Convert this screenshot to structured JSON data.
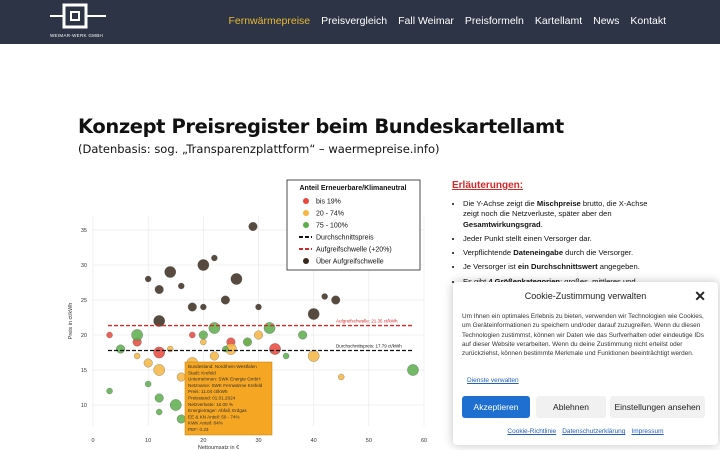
{
  "header": {
    "logo_text": "WEIMAR-WERK GMBH",
    "nav": [
      "Fernwärmepreise",
      "Preisvergleich",
      "Fall Weimar",
      "Preisformeln",
      "Kartellamt",
      "News",
      "Kontakt"
    ]
  },
  "content": {
    "title": "Konzept Preisregister beim Bundeskartellamt",
    "subtitle": "(Datenbasis: sog. „Transparenzplattform“ – waermepreise.info)",
    "explanation_title": "Erläuterungen:",
    "bullets": [
      [
        "Die Y-Achse zeigt die ",
        "Mischpreise",
        " brutto, die X-Achse zeigt noch die Netzverluste, später aber den ",
        "Gesamtwirkungsgrad",
        "."
      ],
      [
        "Jeder Punkt stellt einen Versorger dar."
      ],
      [
        "Verpflichtende ",
        "Dateneingabe",
        " durch die Versorger."
      ],
      [
        "Je Versorger ist ",
        "ein Durchschnittswert",
        " angegeben."
      ],
      [
        "Es gibt ",
        "4 Größenkategorien",
        ": großes, mittleres und"
      ]
    ]
  },
  "chart_data": {
    "type": "scatter",
    "ylabel": "Preis in ct/kWh",
    "xlabel": "Nettoumsatz in €",
    "legend_title": "Anteil Erneuerbare/Klimaneutral",
    "xlim": [
      0,
      60
    ],
    "ylim": [
      7,
      37
    ],
    "xticks": [
      0,
      10,
      20,
      30,
      40,
      50,
      60
    ],
    "yticks": [
      10,
      15,
      20,
      25,
      30,
      35
    ],
    "grid": true,
    "series": [
      {
        "name": "bis 19%",
        "color": "#e8473b",
        "x": [
          3,
          8,
          12,
          18,
          25,
          33
        ],
        "values": [
          20,
          19,
          17.5,
          20,
          19,
          18
        ]
      },
      {
        "name": "20 - 74%",
        "color": "#f4b63f",
        "x": [
          8,
          10,
          12,
          14,
          16,
          18,
          20,
          22,
          25,
          28,
          30,
          40,
          45
        ],
        "values": [
          17,
          16,
          15,
          18,
          14,
          16,
          19,
          17,
          18,
          19,
          20,
          17,
          14
        ]
      },
      {
        "name": "75 - 100%",
        "color": "#5cad4a",
        "x": [
          3,
          5,
          8,
          10,
          12,
          15,
          18,
          20,
          22,
          24,
          28,
          32,
          35,
          38,
          58,
          12,
          16
        ],
        "values": [
          12,
          18,
          20,
          13,
          11,
          10,
          12,
          20,
          21,
          18,
          19,
          21,
          17,
          20,
          15,
          9,
          8
        ]
      },
      {
        "name": "Über Aufgreifschwelle",
        "color": "#3a2a1c",
        "x": [
          10,
          12,
          14,
          16,
          18,
          20,
          22,
          24,
          26,
          30,
          29,
          40,
          42,
          44,
          12,
          20
        ],
        "values": [
          28,
          26.5,
          29,
          27,
          24,
          30,
          31,
          25,
          28,
          24,
          35.5,
          23,
          25.5,
          25,
          22,
          24
        ]
      }
    ],
    "hlines": [
      {
        "name": "Durchschnittspreis",
        "value": 17.79,
        "label": "Durchschnittspreis: 17.79 ct/kWh",
        "color": "#111111"
      },
      {
        "name": "Aufgreifschwelle (+20%)",
        "value": 21.35,
        "label": "Aufgreifschwelle: 21.35 ct/kWh",
        "color": "#d62728"
      }
    ],
    "tooltip": [
      "Bundesland: Nordrhein-Westfalen",
      "Stadt: Krefeld",
      "Unternehmen: SWK Energie GmbH",
      "Netzname: SWK Fernwärme Krefeld",
      "Preis: 11.04 ct/kWh",
      "Preisstand: 01.01.2024",
      "Netzverluste: 16.00 %",
      "Energieträger: Abfall, Erdgas",
      "EE & KN Anteil: 50 - 74%",
      "KWK Anteil: 84%",
      "PEF: 0.23"
    ]
  },
  "cookie": {
    "title": "Cookie-Zustimmung verwalten",
    "text": "Um Ihnen ein optimales Erlebnis zu bieten, verwenden wir Technologien wie Cookies, um Geräteinformationen zu speichern und/oder darauf zuzugreifen. Wenn du diesen Technologien zustimmst, können wir Daten wie das Surfverhalten oder eindeutige IDs auf dieser Website verarbeiten. Wenn du deine Zustimmung nicht erteilst oder zurückziehst, können bestimmte Merkmale und Funktionen beeinträchtigt werden.",
    "manage": "Dienste verwalten",
    "accept": "Akzeptieren",
    "decline": "Ablehnen",
    "settings": "Einstellungen ansehen",
    "links": [
      "Cookie-Richtlinie",
      "Datenschutzerklärung",
      "Impressum"
    ]
  }
}
